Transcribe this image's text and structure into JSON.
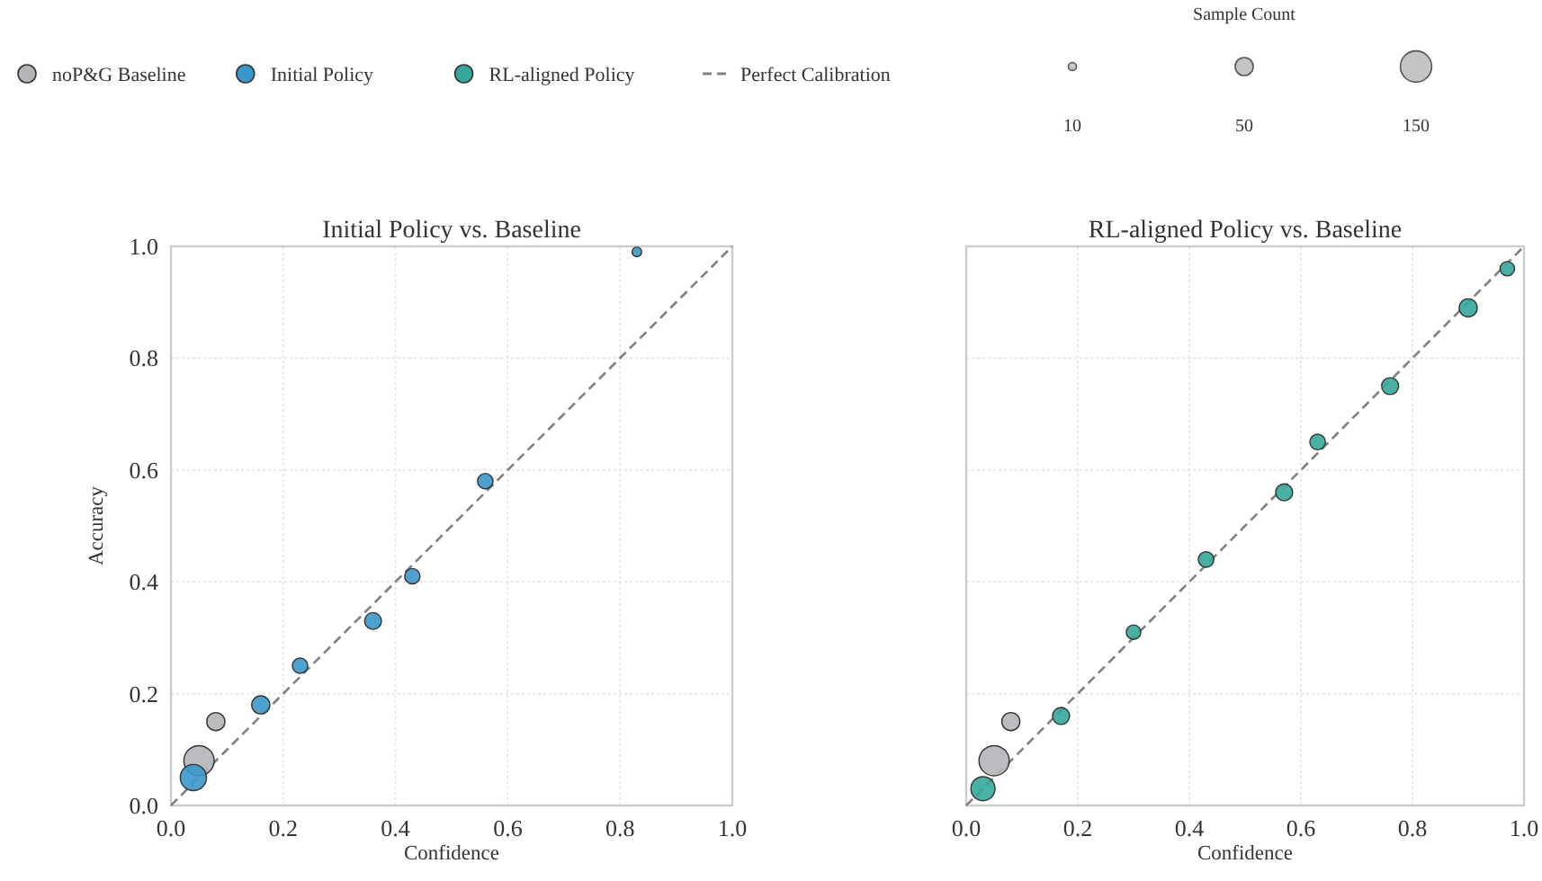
{
  "chart_data": [
    {
      "type": "bubble",
      "title": "Initial Policy vs. Baseline",
      "xlabel": "Confidence",
      "ylabel": "Accuracy",
      "xlim": [
        0,
        1
      ],
      "ylim": [
        0,
        1
      ],
      "xticks": [
        {
          "value": 0,
          "label": "0.0"
        },
        {
          "value": 0.2,
          "label": "0.2"
        },
        {
          "value": 0.4,
          "label": "0.4"
        },
        {
          "value": 0.6,
          "label": "0.6"
        },
        {
          "value": 0.8,
          "label": "0.8"
        },
        {
          "value": 1,
          "label": "1.0"
        }
      ],
      "yticks": [
        {
          "value": 0,
          "label": "0.0"
        },
        {
          "value": 0.2,
          "label": "0.2"
        },
        {
          "value": 0.4,
          "label": "0.4"
        },
        {
          "value": 0.6,
          "label": "0.6"
        },
        {
          "value": 0.8,
          "label": "0.8"
        },
        {
          "value": 1,
          "label": "1.0"
        }
      ],
      "grid": true,
      "legend": "top left",
      "series": [
        {
          "name": "noP&G Baseline",
          "color": "#b4b5b8",
          "x": [
            0.05,
            0.08
          ],
          "values": [
            0.08,
            0.15
          ],
          "sizes": [
            1,
            0.36
          ]
        },
        {
          "name": "Initial Policy",
          "color": "#3b97c9",
          "x": [
            0.04,
            0.16,
            0.23,
            0.36,
            0.43,
            0.56,
            0.83
          ],
          "values": [
            0.05,
            0.18,
            0.25,
            0.33,
            0.41,
            0.58,
            0.99
          ],
          "sizes": [
            0.75,
            0.36,
            0.26,
            0.31,
            0.26,
            0.26,
            0.1
          ]
        },
        {
          "name": "Perfect Calibration",
          "type": "line",
          "color": "#808080",
          "line_style": "dashed",
          "x": [
            0,
            1
          ],
          "values": [
            0,
            1
          ]
        }
      ]
    },
    {
      "type": "bubble",
      "title": "RL-aligned Policy vs. Baseline",
      "xlabel": "Confidence",
      "xlim": [
        0,
        1
      ],
      "ylim": [
        0,
        1
      ],
      "xticks": [
        {
          "value": 0,
          "label": "0.0"
        },
        {
          "value": 0.2,
          "label": "0.2"
        },
        {
          "value": 0.4,
          "label": "0.4"
        },
        {
          "value": 0.6,
          "label": "0.6"
        },
        {
          "value": 0.8,
          "label": "0.8"
        },
        {
          "value": 1,
          "label": "1.0"
        }
      ],
      "yticks": [
        {
          "value": 0,
          "label": null
        },
        {
          "value": 0.2,
          "label": null
        },
        {
          "value": 0.4,
          "label": null
        },
        {
          "value": 0.6,
          "label": null
        },
        {
          "value": 0.8,
          "label": null
        },
        {
          "value": 1,
          "label": null
        }
      ],
      "tick_labels": "x",
      "grid": true,
      "legend": "top left",
      "legend_title": "Sample Count",
      "size_legend": [
        10,
        50,
        150
      ],
      "series": [
        {
          "name": "noP&G Baseline",
          "color": "#b4b5b8",
          "x": [
            0.05,
            0.08
          ],
          "values": [
            0.08,
            0.15
          ],
          "sizes": [
            140,
            50
          ]
        },
        {
          "name": "RL-aligned Policy",
          "color": "#35a899",
          "x": [
            0.03,
            0.17,
            0.3,
            0.43,
            0.57,
            0.63,
            0.76,
            0.9,
            0.97
          ],
          "values": [
            0.03,
            0.16,
            0.31,
            0.44,
            0.56,
            0.65,
            0.75,
            0.89,
            0.96
          ],
          "sizes": [
            89,
            44,
            32,
            37,
            44,
            37,
            44,
            50,
            32
          ]
        },
        {
          "name": "Perfect Calibration",
          "type": "line",
          "color": "#808080",
          "line_style": "dashed",
          "x": [
            0,
            1
          ],
          "values": [
            0,
            1
          ]
        }
      ]
    }
  ]
}
